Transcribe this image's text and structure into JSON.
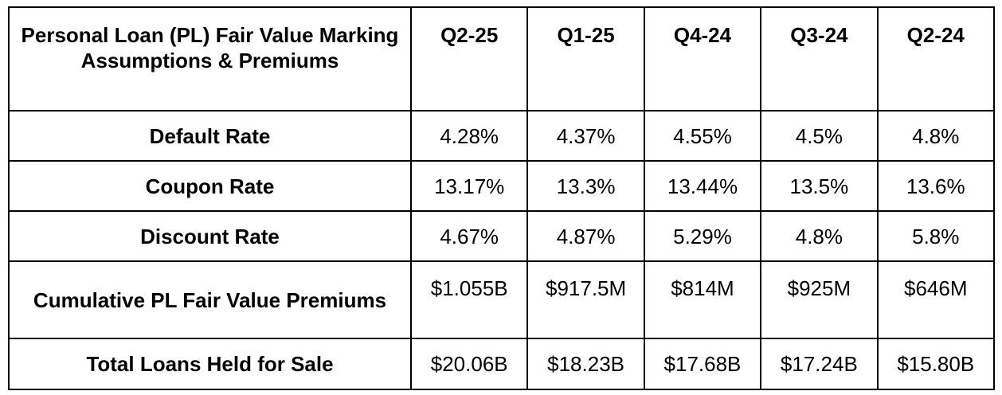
{
  "table": {
    "header_title": "Personal Loan (PL) Fair Value Marking Assumptions & Premiums",
    "columns": [
      "Q2-25",
      "Q1-25",
      "Q4-24",
      "Q3-24",
      "Q2-24"
    ],
    "rows": [
      {
        "label": "Default Rate",
        "values": [
          "4.28%",
          "4.37%",
          "4.55%",
          "4.5%",
          "4.8%"
        ]
      },
      {
        "label": "Coupon Rate",
        "values": [
          "13.17%",
          "13.3%",
          "13.44%",
          "13.5%",
          "13.6%"
        ]
      },
      {
        "label": "Discount Rate",
        "values": [
          "4.67%",
          "4.87%",
          "5.29%",
          "4.8%",
          "5.8%"
        ]
      },
      {
        "label": "Cumulative PL Fair Value Premiums",
        "values": [
          "$1.055B",
          "$917.5M",
          "$814M",
          "$925M",
          "$646M"
        ]
      },
      {
        "label": "Total Loans Held for Sale",
        "values": [
          "$20.06B",
          "$18.23B",
          "$17.68B",
          "$17.24B",
          "$15.80B"
        ]
      }
    ]
  }
}
